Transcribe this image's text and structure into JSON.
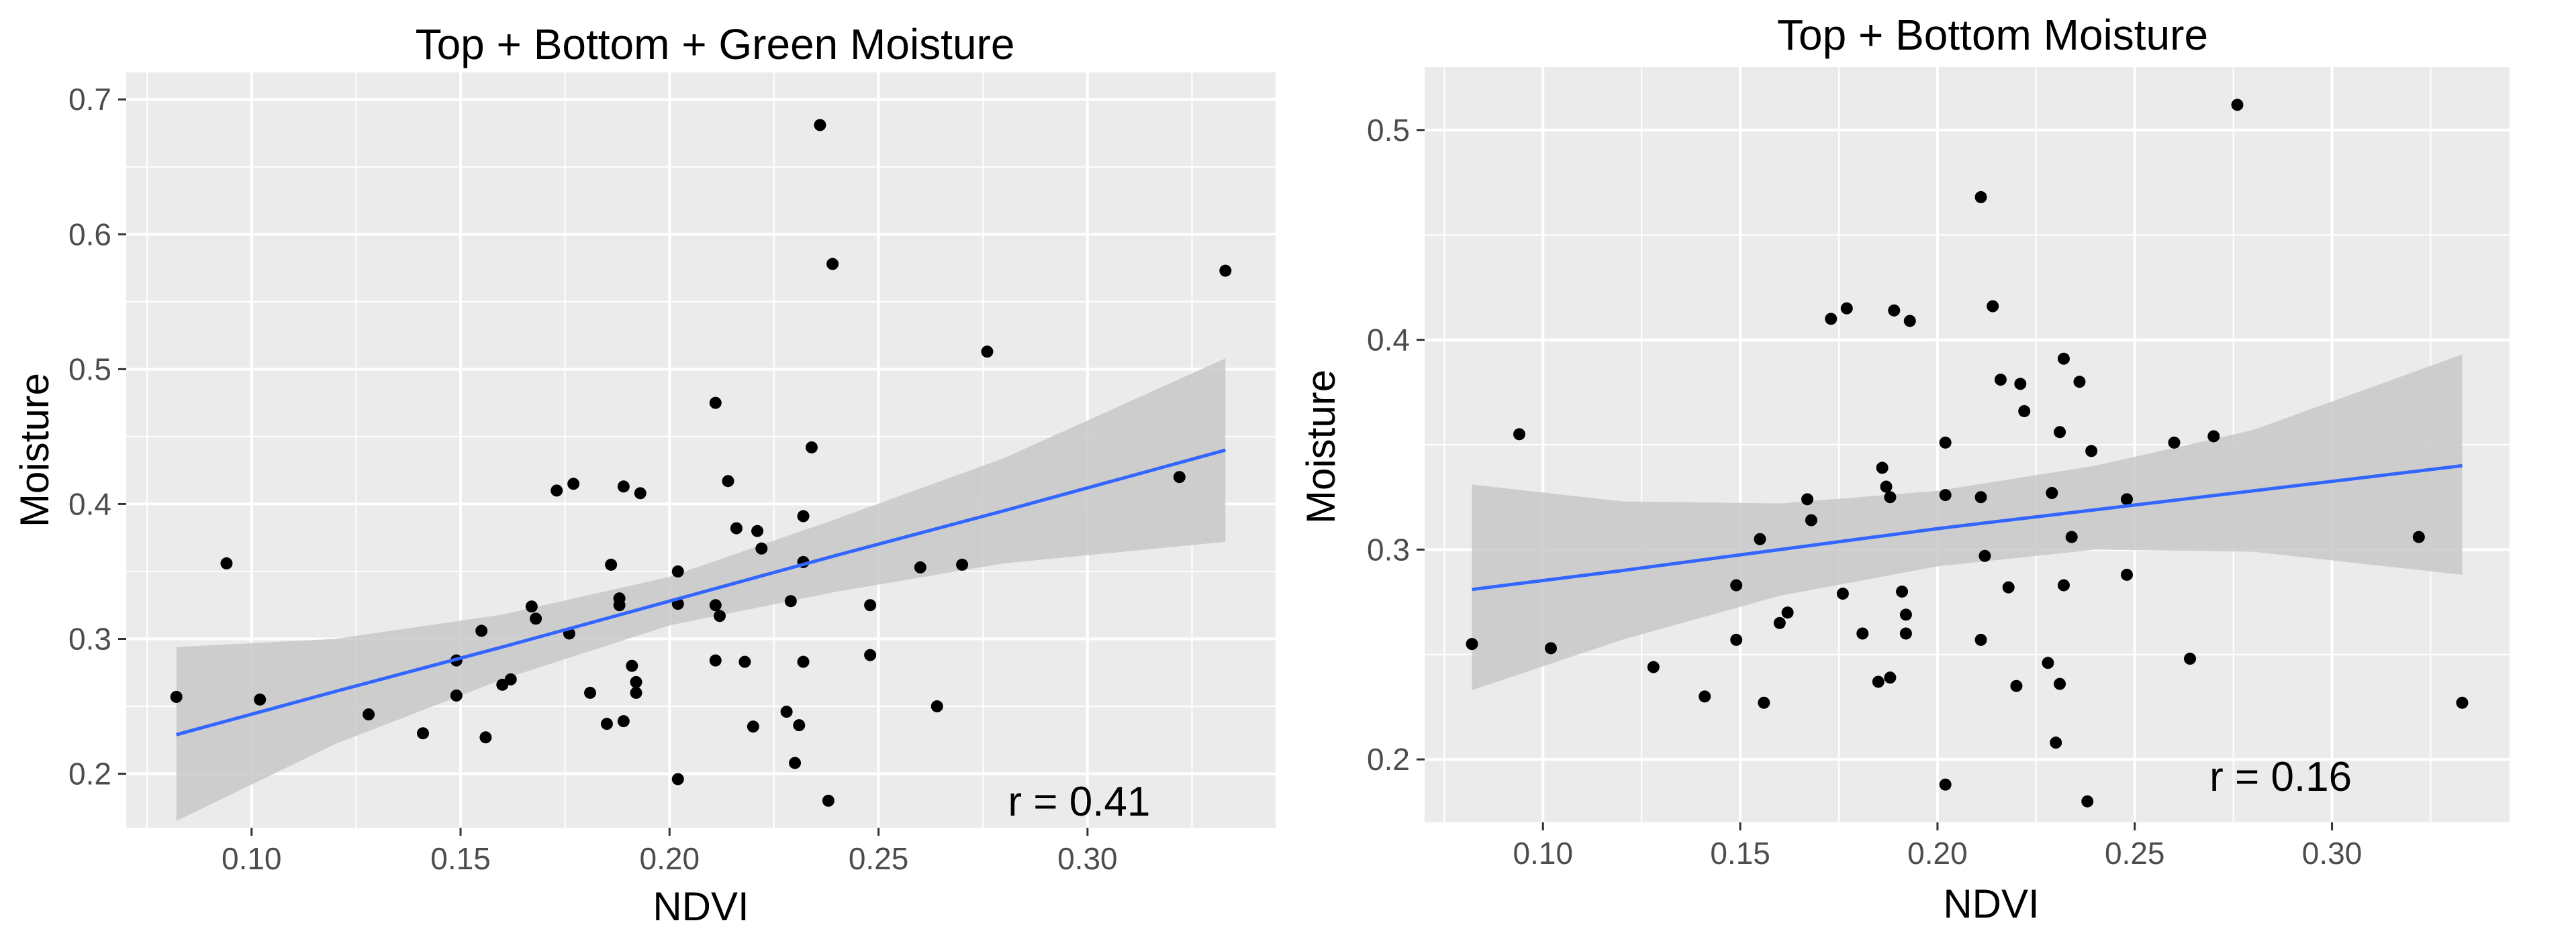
{
  "chart_data": [
    {
      "type": "scatter",
      "title": "Top + Bottom + Green Moisture",
      "xlabel": "NDVI",
      "ylabel": "Moisture",
      "xlim": [
        0.07,
        0.345
      ],
      "ylim": [
        0.16,
        0.72
      ],
      "xticks": [
        0.1,
        0.15,
        0.2,
        0.25,
        0.3
      ],
      "xtick_labels": [
        "0.10",
        "0.15",
        "0.20",
        "0.25",
        "0.30"
      ],
      "yticks": [
        0.2,
        0.3,
        0.4,
        0.5,
        0.6,
        0.7
      ],
      "ytick_labels": [
        "0.2",
        "0.3",
        "0.4",
        "0.5",
        "0.6",
        "0.7"
      ],
      "grid": true,
      "annotation": "r = 0.41",
      "annotation_pos": {
        "x": 0.298,
        "y": 0.18
      },
      "points": [
        {
          "x": 0.082,
          "y": 0.257
        },
        {
          "x": 0.094,
          "y": 0.356
        },
        {
          "x": 0.102,
          "y": 0.255
        },
        {
          "x": 0.128,
          "y": 0.244
        },
        {
          "x": 0.141,
          "y": 0.23
        },
        {
          "x": 0.149,
          "y": 0.284
        },
        {
          "x": 0.149,
          "y": 0.258
        },
        {
          "x": 0.155,
          "y": 0.306
        },
        {
          "x": 0.156,
          "y": 0.227
        },
        {
          "x": 0.16,
          "y": 0.266
        },
        {
          "x": 0.162,
          "y": 0.27
        },
        {
          "x": 0.167,
          "y": 0.324
        },
        {
          "x": 0.168,
          "y": 0.315
        },
        {
          "x": 0.173,
          "y": 0.41
        },
        {
          "x": 0.176,
          "y": 0.304
        },
        {
          "x": 0.177,
          "y": 0.415
        },
        {
          "x": 0.181,
          "y": 0.26
        },
        {
          "x": 0.185,
          "y": 0.237
        },
        {
          "x": 0.186,
          "y": 0.355
        },
        {
          "x": 0.188,
          "y": 0.33
        },
        {
          "x": 0.188,
          "y": 0.325
        },
        {
          "x": 0.189,
          "y": 0.413
        },
        {
          "x": 0.189,
          "y": 0.239
        },
        {
          "x": 0.191,
          "y": 0.28
        },
        {
          "x": 0.192,
          "y": 0.268
        },
        {
          "x": 0.192,
          "y": 0.26
        },
        {
          "x": 0.193,
          "y": 0.408
        },
        {
          "x": 0.202,
          "y": 0.196
        },
        {
          "x": 0.202,
          "y": 0.35
        },
        {
          "x": 0.202,
          "y": 0.326
        },
        {
          "x": 0.211,
          "y": 0.475
        },
        {
          "x": 0.211,
          "y": 0.325
        },
        {
          "x": 0.211,
          "y": 0.284
        },
        {
          "x": 0.212,
          "y": 0.317
        },
        {
          "x": 0.214,
          "y": 0.417
        },
        {
          "x": 0.216,
          "y": 0.382
        },
        {
          "x": 0.218,
          "y": 0.283
        },
        {
          "x": 0.22,
          "y": 0.235
        },
        {
          "x": 0.221,
          "y": 0.38
        },
        {
          "x": 0.222,
          "y": 0.367
        },
        {
          "x": 0.228,
          "y": 0.246
        },
        {
          "x": 0.229,
          "y": 0.328
        },
        {
          "x": 0.23,
          "y": 0.208
        },
        {
          "x": 0.231,
          "y": 0.236
        },
        {
          "x": 0.232,
          "y": 0.357
        },
        {
          "x": 0.232,
          "y": 0.391
        },
        {
          "x": 0.232,
          "y": 0.283
        },
        {
          "x": 0.234,
          "y": 0.442
        },
        {
          "x": 0.236,
          "y": 0.681
        },
        {
          "x": 0.238,
          "y": 0.18
        },
        {
          "x": 0.239,
          "y": 0.578
        },
        {
          "x": 0.248,
          "y": 0.325
        },
        {
          "x": 0.248,
          "y": 0.288
        },
        {
          "x": 0.26,
          "y": 0.353
        },
        {
          "x": 0.264,
          "y": 0.25
        },
        {
          "x": 0.27,
          "y": 0.355
        },
        {
          "x": 0.276,
          "y": 0.513
        },
        {
          "x": 0.322,
          "y": 0.42
        },
        {
          "x": 0.333,
          "y": 0.573
        }
      ],
      "fit": {
        "x": [
          0.082,
          0.12,
          0.16,
          0.2,
          0.24,
          0.28,
          0.333
        ],
        "y": [
          0.229,
          0.261,
          0.294,
          0.328,
          0.362,
          0.395,
          0.44
        ],
        "lower": [
          0.165,
          0.222,
          0.27,
          0.31,
          0.335,
          0.356,
          0.372
        ],
        "upper": [
          0.294,
          0.3,
          0.318,
          0.346,
          0.389,
          0.434,
          0.508
        ],
        "line_color": "#3366ff",
        "band_color": "#c8c8c8"
      }
    },
    {
      "type": "scatter",
      "title": "Top + Bottom Moisture",
      "xlabel": "NDVI",
      "ylabel": "Moisture",
      "xlim": [
        0.07,
        0.345
      ],
      "ylim": [
        0.17,
        0.53
      ],
      "xticks": [
        0.1,
        0.15,
        0.2,
        0.25,
        0.3
      ],
      "xtick_labels": [
        "0.10",
        "0.15",
        "0.20",
        "0.25",
        "0.30"
      ],
      "yticks": [
        0.2,
        0.3,
        0.4,
        0.5
      ],
      "ytick_labels": [
        "0.2",
        "0.3",
        "0.4",
        "0.5"
      ],
      "grid": true,
      "annotation": "r = 0.16",
      "annotation_pos": {
        "x": 0.287,
        "y": 0.192
      },
      "points": [
        {
          "x": 0.082,
          "y": 0.255
        },
        {
          "x": 0.094,
          "y": 0.355
        },
        {
          "x": 0.102,
          "y": 0.253
        },
        {
          "x": 0.128,
          "y": 0.244
        },
        {
          "x": 0.141,
          "y": 0.23
        },
        {
          "x": 0.149,
          "y": 0.283
        },
        {
          "x": 0.149,
          "y": 0.257
        },
        {
          "x": 0.155,
          "y": 0.305
        },
        {
          "x": 0.156,
          "y": 0.227
        },
        {
          "x": 0.16,
          "y": 0.265
        },
        {
          "x": 0.162,
          "y": 0.27
        },
        {
          "x": 0.167,
          "y": 0.324
        },
        {
          "x": 0.168,
          "y": 0.314
        },
        {
          "x": 0.173,
          "y": 0.41
        },
        {
          "x": 0.176,
          "y": 0.279
        },
        {
          "x": 0.177,
          "y": 0.415
        },
        {
          "x": 0.181,
          "y": 0.26
        },
        {
          "x": 0.185,
          "y": 0.237
        },
        {
          "x": 0.186,
          "y": 0.339
        },
        {
          "x": 0.187,
          "y": 0.33
        },
        {
          "x": 0.188,
          "y": 0.325
        },
        {
          "x": 0.188,
          "y": 0.239
        },
        {
          "x": 0.189,
          "y": 0.414
        },
        {
          "x": 0.191,
          "y": 0.28
        },
        {
          "x": 0.192,
          "y": 0.269
        },
        {
          "x": 0.192,
          "y": 0.26
        },
        {
          "x": 0.193,
          "y": 0.409
        },
        {
          "x": 0.202,
          "y": 0.188
        },
        {
          "x": 0.202,
          "y": 0.351
        },
        {
          "x": 0.202,
          "y": 0.326
        },
        {
          "x": 0.211,
          "y": 0.468
        },
        {
          "x": 0.211,
          "y": 0.325
        },
        {
          "x": 0.211,
          "y": 0.257
        },
        {
          "x": 0.212,
          "y": 0.297
        },
        {
          "x": 0.214,
          "y": 0.416
        },
        {
          "x": 0.216,
          "y": 0.381
        },
        {
          "x": 0.218,
          "y": 0.282
        },
        {
          "x": 0.22,
          "y": 0.235
        },
        {
          "x": 0.221,
          "y": 0.379
        },
        {
          "x": 0.222,
          "y": 0.366
        },
        {
          "x": 0.228,
          "y": 0.246
        },
        {
          "x": 0.229,
          "y": 0.327
        },
        {
          "x": 0.23,
          "y": 0.208
        },
        {
          "x": 0.231,
          "y": 0.236
        },
        {
          "x": 0.231,
          "y": 0.356
        },
        {
          "x": 0.232,
          "y": 0.391
        },
        {
          "x": 0.232,
          "y": 0.283
        },
        {
          "x": 0.234,
          "y": 0.306
        },
        {
          "x": 0.236,
          "y": 0.38
        },
        {
          "x": 0.238,
          "y": 0.18
        },
        {
          "x": 0.239,
          "y": 0.347
        },
        {
          "x": 0.248,
          "y": 0.324
        },
        {
          "x": 0.248,
          "y": 0.288
        },
        {
          "x": 0.26,
          "y": 0.351
        },
        {
          "x": 0.264,
          "y": 0.248
        },
        {
          "x": 0.27,
          "y": 0.354
        },
        {
          "x": 0.276,
          "y": 0.512
        },
        {
          "x": 0.322,
          "y": 0.306
        },
        {
          "x": 0.333,
          "y": 0.227
        }
      ],
      "fit": {
        "x": [
          0.082,
          0.12,
          0.16,
          0.2,
          0.24,
          0.28,
          0.333
        ],
        "y": [
          0.281,
          0.29,
          0.3,
          0.31,
          0.319,
          0.328,
          0.34
        ],
        "lower": [
          0.233,
          0.257,
          0.278,
          0.292,
          0.3,
          0.299,
          0.288
        ],
        "upper": [
          0.331,
          0.323,
          0.322,
          0.328,
          0.34,
          0.357,
          0.393
        ],
        "line_color": "#3366ff",
        "band_color": "#c8c8c8"
      }
    }
  ]
}
